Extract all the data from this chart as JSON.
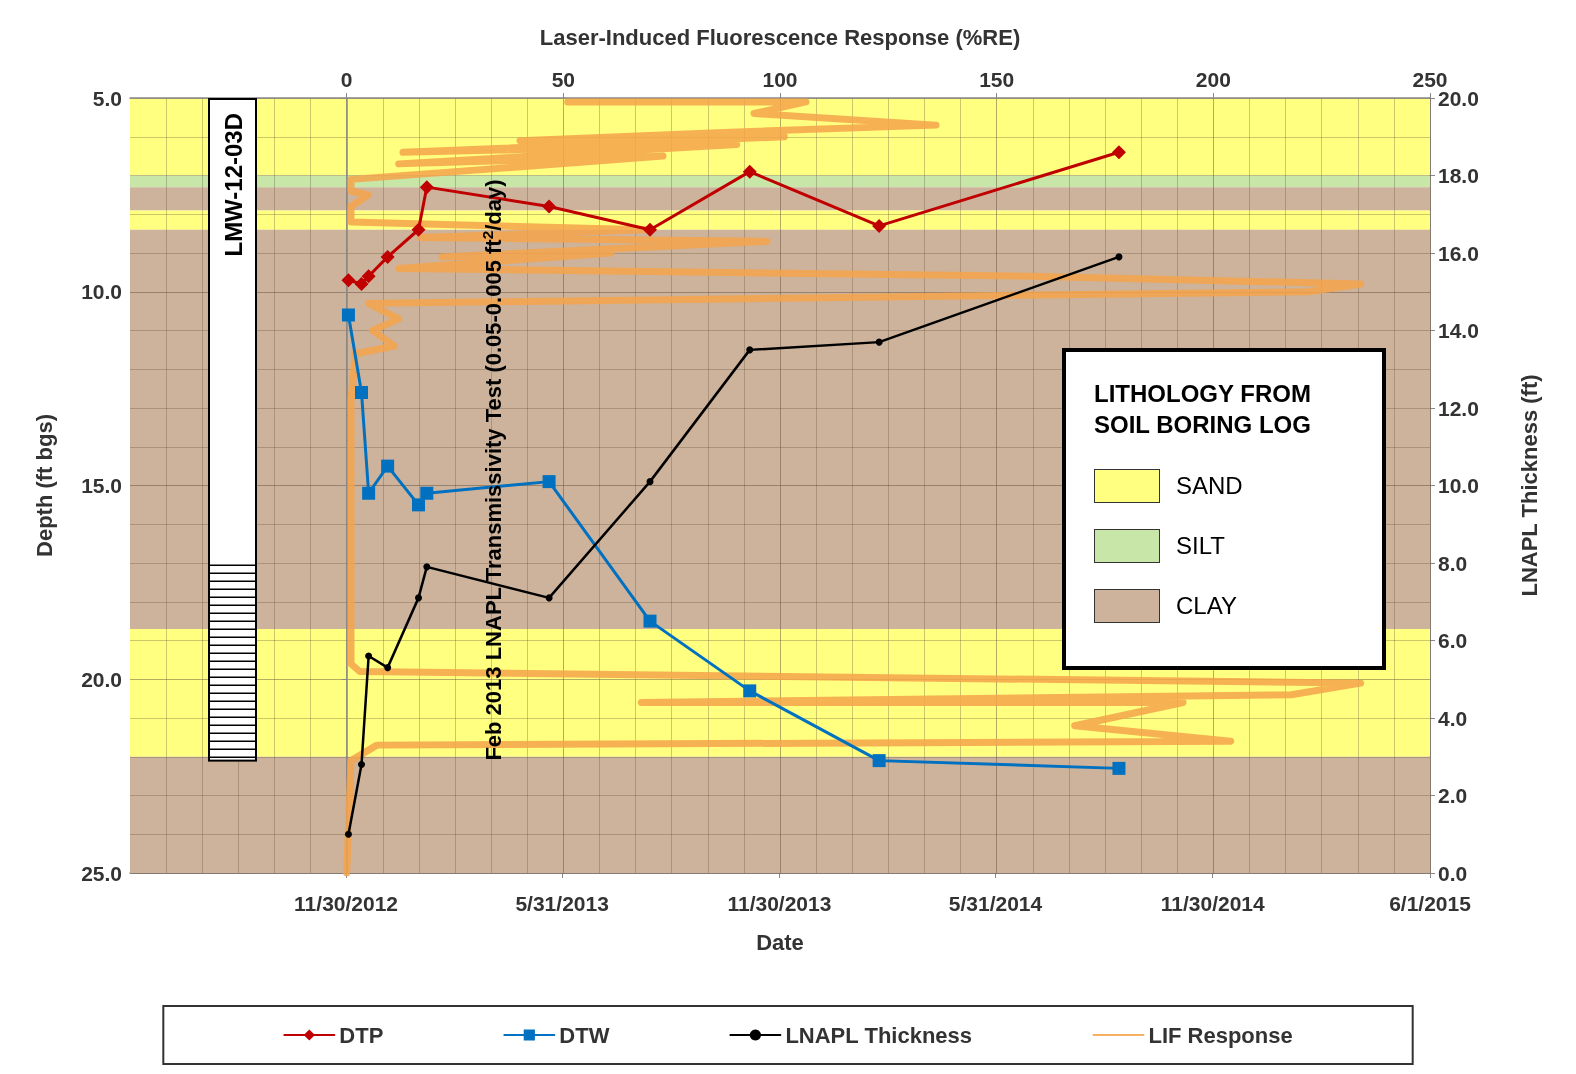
{
  "chart_data": {
    "type": "line",
    "xlabel": "Date",
    "x2label": "Laser-Induced Fluorescence Response (%RE)",
    "ylabel": "Depth (ft bgs)",
    "y2label": "LNAPL Thickness (ft)",
    "legend_title": "LITHOLOGY FROM SOIL BORING LOG",
    "annotations": [
      "Feb 2013 LNAPL Transmissivity Test (0.05-0.005 ft$^{2}$/day)",
      "LMW-12-03D"
    ],
    "x": [
      "2012-12-02",
      "2012-12-13",
      "2012-12-19",
      "2013-01-04",
      "2013-01-30",
      "2013-02-06",
      "2013-05-20",
      "2013-08-13",
      "2013-11-05",
      "2014-02-22",
      "2014-09-12"
    ],
    "series": [
      {
        "name": "DTP",
        "color": "#c00000",
        "marker": "diamond",
        "values": [
          9.7,
          9.8,
          9.6,
          9.1,
          8.4,
          7.3,
          7.8,
          8.4,
          6.9,
          8.3,
          6.4
        ]
      },
      {
        "name": "DTW",
        "color": "#0070c0",
        "marker": "square",
        "values": [
          10.6,
          12.6,
          15.2,
          14.5,
          15.5,
          15.2,
          14.9,
          18.5,
          20.3,
          22.1,
          22.3
        ]
      },
      {
        "name": "LNAPL Thickness",
        "color": "#000000",
        "marker": "circle",
        "axis": "y2",
        "values": [
          1.0,
          2.8,
          5.6,
          5.3,
          7.1,
          7.9,
          7.1,
          10.1,
          13.5,
          13.7,
          15.9
        ]
      },
      {
        "name": "LIF Response",
        "color": "#f5a34a",
        "marker": "none",
        "axis": "x2",
        "x": [
          51,
          106,
          94,
          136,
          84,
          40,
          101,
          13,
          90,
          12,
          73,
          25,
          1,
          1,
          5,
          1,
          1,
          69,
          17,
          97,
          22,
          61,
          12,
          158,
          234,
          222,
          5,
          12,
          6,
          11,
          2,
          1,
          1,
          3,
          234,
          218,
          68,
          193,
          168,
          204,
          7,
          1,
          0
        ],
        "values": [
          5.1,
          5.1,
          5.4,
          5.7,
          5.9,
          6.1,
          6.0,
          6.4,
          6.2,
          6.7,
          6.5,
          6.9,
          7.1,
          7.4,
          7.5,
          7.8,
          8.2,
          8.4,
          8.6,
          8.7,
          9.1,
          9.0,
          9.4,
          9.6,
          9.8,
          10.0,
          10.3,
          10.7,
          11.0,
          11.4,
          11.6,
          12.8,
          19.6,
          19.8,
          20.1,
          20.4,
          20.6,
          20.6,
          21.2,
          21.6,
          21.7,
          22.1,
          25.0
        ]
      }
    ],
    "xlim": [
      "2012-06-01",
      "2015-06-01"
    ],
    "xticks": [
      {
        "value": "2012-11-30",
        "label": "11/30/2012"
      },
      {
        "value": "2013-05-31",
        "label": "5/31/2013"
      },
      {
        "value": "2013-11-30",
        "label": "11/30/2013"
      },
      {
        "value": "2014-05-31",
        "label": "5/31/2014"
      },
      {
        "value": "2014-11-30",
        "label": "11/30/2014"
      },
      {
        "value": "2015-06-01",
        "label": "6/1/2015"
      }
    ],
    "x2lim": [
      -50,
      250
    ],
    "x2ticks": [
      0,
      50,
      100,
      150,
      200,
      250
    ],
    "ylim": [
      25,
      5
    ],
    "yticks": [
      {
        "value": 5,
        "label": "5.0"
      },
      {
        "value": 10,
        "label": "10.0"
      },
      {
        "value": 15,
        "label": "15.0"
      },
      {
        "value": 20,
        "label": "20.0"
      },
      {
        "value": 25,
        "label": "25.0"
      }
    ],
    "y2lim": [
      0,
      20
    ],
    "y2ticks": [
      {
        "value": 0,
        "label": "0.0"
      },
      {
        "value": 2,
        "label": "2.0"
      },
      {
        "value": 4,
        "label": "4.0"
      },
      {
        "value": 6,
        "label": "6.0"
      },
      {
        "value": 8,
        "label": "8.0"
      },
      {
        "value": 10,
        "label": "10.0"
      },
      {
        "value": 12,
        "label": "12.0"
      },
      {
        "value": 14,
        "label": "14.0"
      },
      {
        "value": 16,
        "label": "16.0"
      },
      {
        "value": 18,
        "label": "18.0"
      },
      {
        "value": 20,
        "label": "20.0"
      }
    ],
    "bands": [
      {
        "axis": "y",
        "from": 5,
        "to": 7.0,
        "label": "SAND",
        "color": "#ffff80"
      },
      {
        "axis": "y",
        "from": 7.0,
        "to": 7.3,
        "label": "SILT",
        "color": "#c8e6a8"
      },
      {
        "axis": "y",
        "from": 7.3,
        "to": 7.9,
        "color": "#cdb39b"
      },
      {
        "axis": "y",
        "from": 7.9,
        "to": 8.4,
        "color": "#ffff80"
      },
      {
        "axis": "y",
        "from": 8.4,
        "to": 18.7,
        "label": "CLAY",
        "color": "#cdb39b"
      },
      {
        "axis": "y",
        "from": 18.7,
        "to": 22.0,
        "color": "#ffff80"
      },
      {
        "axis": "y",
        "from": 22.0,
        "to": 25,
        "color": "#cdb39b"
      }
    ],
    "grid": true,
    "legend": "bottom",
    "line_style": "solid"
  }
}
